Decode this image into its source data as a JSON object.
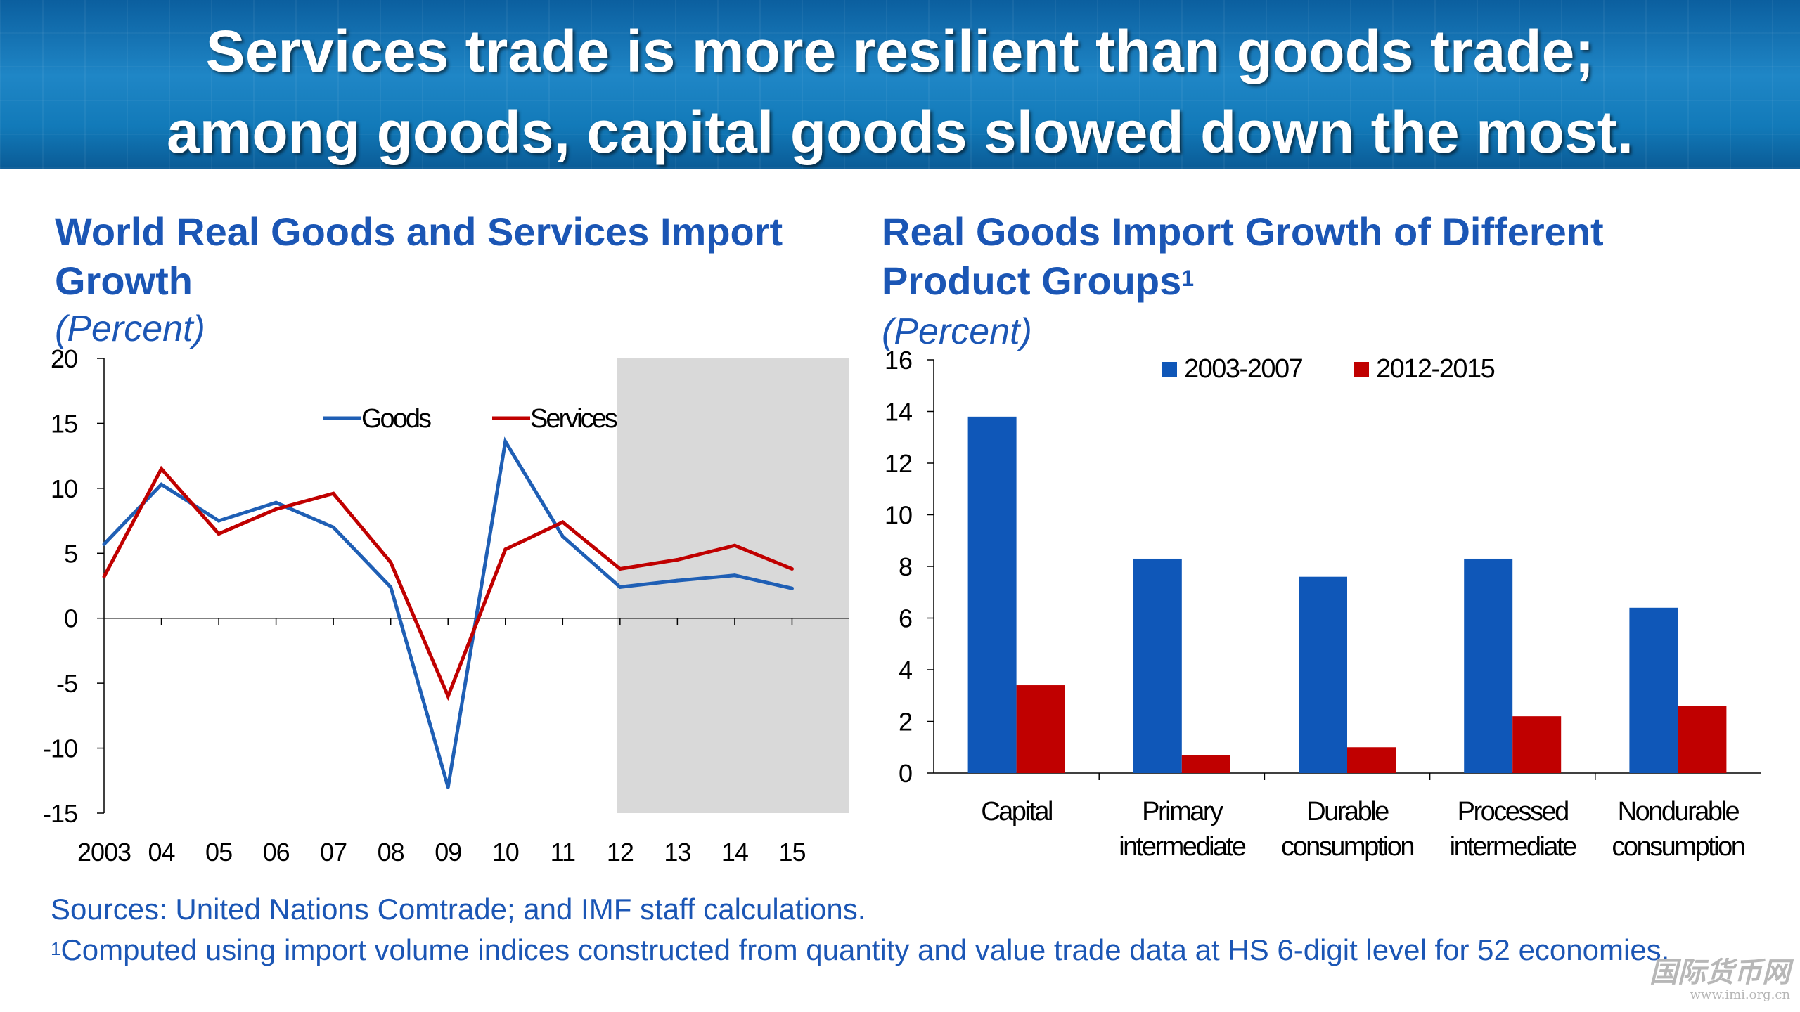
{
  "header": {
    "title_line1": "Services trade is more resilient than goods trade;",
    "title_line2": "among goods, capital goods slowed down the most."
  },
  "left_panel": {
    "title_line1": "World Real Goods and Services Import",
    "title_line2": "Growth",
    "subtitle": "(Percent)"
  },
  "right_panel": {
    "title_line1": "Real Goods Import Growth of Different",
    "title_line2": "Product Groups",
    "title_sup": "1",
    "subtitle": "(Percent)"
  },
  "chart_data": [
    {
      "type": "line",
      "title": "World Real Goods and Services Import Growth",
      "unit": "(Percent)",
      "x": [
        "2003",
        "04",
        "05",
        "06",
        "07",
        "08",
        "09",
        "10",
        "11",
        "12",
        "13",
        "14",
        "15"
      ],
      "ylim": [
        -15,
        20
      ],
      "yticks": [
        "20",
        "15",
        "10",
        "5",
        "0",
        "-5",
        "-10",
        "-15"
      ],
      "grid": false,
      "legend": "top-center",
      "shaded_x_range": [
        "12",
        "15"
      ],
      "shade_color": "#d9d9d9",
      "series": [
        {
          "name": "Goods",
          "color": "#1f5fb5",
          "values": [
            5.7,
            10.3,
            7.5,
            8.9,
            7.0,
            2.4,
            -13.0,
            13.6,
            6.3,
            2.4,
            2.9,
            3.3,
            2.3
          ]
        },
        {
          "name": "Services",
          "color": "#c00000",
          "values": [
            3.2,
            11.5,
            6.5,
            8.4,
            9.6,
            4.3,
            -6.0,
            5.3,
            7.4,
            3.8,
            4.5,
            5.6,
            3.8
          ]
        }
      ]
    },
    {
      "type": "bar",
      "title": "Real Goods Import Growth of Different Product Groups",
      "unit": "(Percent)",
      "categories": [
        [
          "Capital"
        ],
        [
          "Primary",
          "intermediate"
        ],
        [
          "Durable",
          "consumption"
        ],
        [
          "Processed",
          "intermediate"
        ],
        [
          "Nondurable",
          "consumption"
        ]
      ],
      "ylim": [
        0,
        16
      ],
      "yticks": [
        "16",
        "14",
        "12",
        "10",
        "8",
        "6",
        "4",
        "2",
        "0"
      ],
      "grid": false,
      "legend": "top",
      "series": [
        {
          "name": "2003-2007",
          "color": "#0f57b8",
          "values": [
            13.8,
            8.3,
            7.6,
            8.3,
            6.4
          ]
        },
        {
          "name": "2012-2015",
          "color": "#c00000",
          "values": [
            3.4,
            0.7,
            1.0,
            2.2,
            2.6
          ]
        }
      ]
    }
  ],
  "footnotes": {
    "sources": "Sources: United Nations Comtrade; and IMF staff calculations.",
    "note_marker": "1",
    "note_text": "Computed using import volume indices constructed from quantity and value trade data at HS 6-digit level for 52 economies."
  },
  "watermark": {
    "main": "国际货币网",
    "url": "www.imi.org.cn"
  }
}
